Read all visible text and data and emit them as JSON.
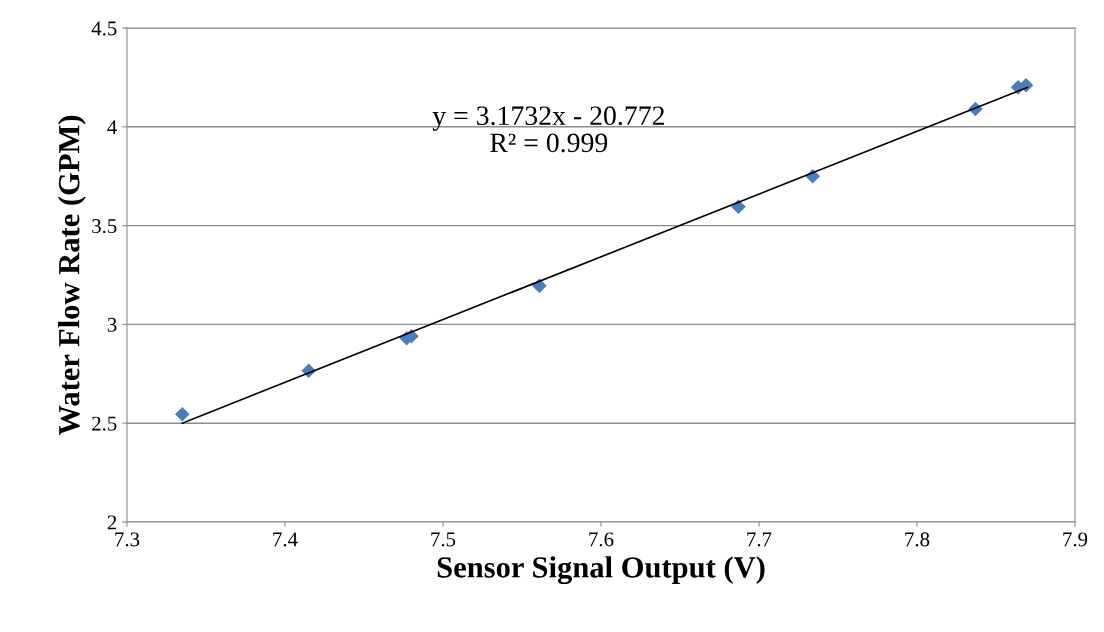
{
  "chart_data": {
    "type": "scatter",
    "xlabel": "Sensor Signal Output (V)",
    "ylabel": "Water Flow Rate (GPM)",
    "xlim": [
      7.3,
      7.9
    ],
    "xticks": [
      7.3,
      7.4,
      7.5,
      7.6,
      7.7,
      7.8,
      7.9
    ],
    "ylim": [
      2,
      4.5
    ],
    "yticks": [
      2,
      2.5,
      3,
      3.5,
      4,
      4.5
    ],
    "grid": "y",
    "legend": false,
    "annotations": [
      "y = 3.1732x - 20.772\nR² = 0.999"
    ],
    "series": [
      {
        "marker": "diamond",
        "color": "#4a7ebb",
        "x": [
          7.335,
          7.415,
          7.477,
          7.48,
          7.561,
          7.687,
          7.734,
          7.837,
          7.864,
          7.869
        ],
        "values": [
          2.545,
          2.765,
          2.93,
          2.94,
          3.195,
          3.595,
          3.75,
          4.09,
          4.2,
          4.21
        ]
      },
      {
        "type": "line",
        "color": "#000000",
        "x": [
          7.335,
          7.87
        ],
        "values": [
          2.5,
          4.2
        ]
      }
    ]
  }
}
